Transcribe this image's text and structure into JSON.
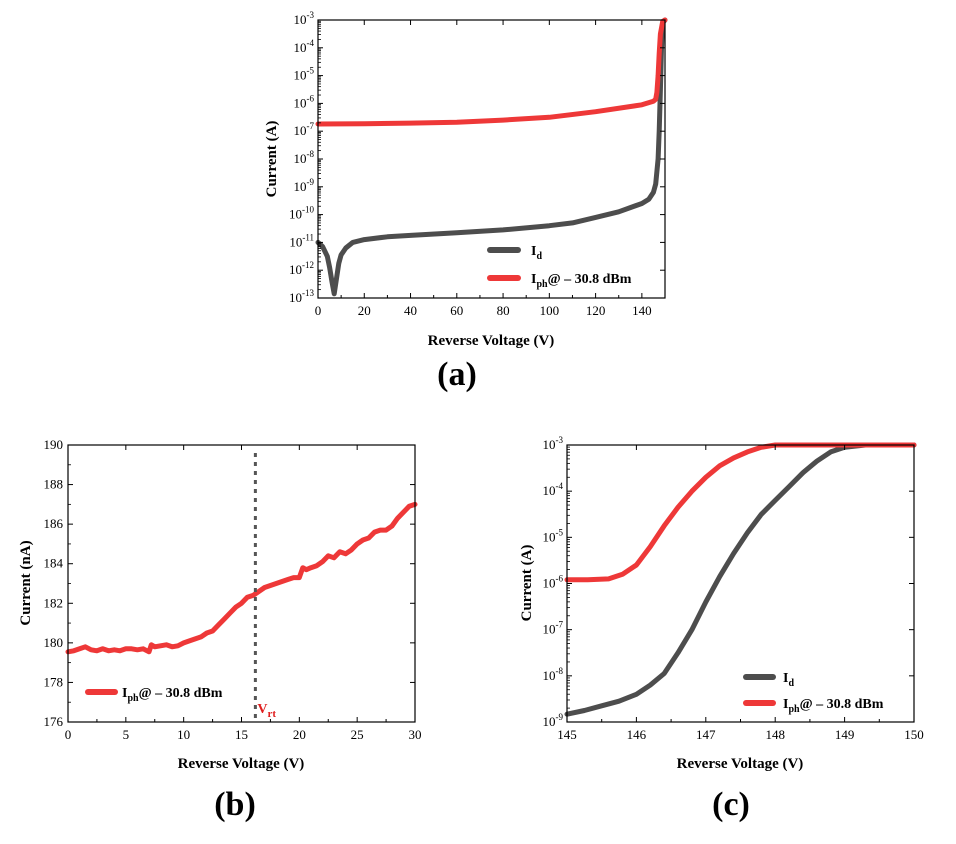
{
  "colors": {
    "dark": "#4d4d4d",
    "red": "#ee3838",
    "vrt": "#e01f1f"
  },
  "chart_data": [
    {
      "panel": "(a)",
      "type": "line",
      "xlabel": "Reverse Voltage (V)",
      "ylabel": "Current (A)",
      "xlim": [
        0,
        150
      ],
      "ylog_range": [
        -13,
        -3
      ],
      "yscale": "log",
      "xticks": [
        "0",
        "20",
        "40",
        "60",
        "80",
        "100",
        "120",
        "140"
      ],
      "xtick_values": [
        0,
        20,
        40,
        60,
        80,
        100,
        120,
        140
      ],
      "ytick_exponents": [
        "-13",
        "-12",
        "-11",
        "-10",
        "-9",
        "-8",
        "-7",
        "-6",
        "-5",
        "-4",
        "-3"
      ],
      "legend": [
        {
          "main": "I",
          "sub": "d",
          "rest": ""
        },
        {
          "main": "I",
          "sub": "ph",
          "rest": "@ – 30.8 dBm"
        }
      ],
      "series": [
        {
          "name": "Id",
          "color_key": "dark",
          "x": [
            0,
            2,
            4,
            5,
            6,
            7,
            8,
            9,
            10,
            12,
            15,
            20,
            30,
            40,
            60,
            80,
            100,
            110,
            120,
            130,
            135,
            140,
            143,
            145,
            146,
            147,
            147.5,
            148,
            148.5,
            149,
            150
          ],
          "log10y": [
            -11.0,
            -11.15,
            -11.5,
            -11.9,
            -12.4,
            -12.85,
            -12.3,
            -11.75,
            -11.45,
            -11.2,
            -11.0,
            -10.9,
            -10.8,
            -10.75,
            -10.65,
            -10.55,
            -10.4,
            -10.3,
            -10.1,
            -9.9,
            -9.75,
            -9.6,
            -9.45,
            -9.2,
            -8.9,
            -8.0,
            -7.0,
            -5.5,
            -4.0,
            -3.1,
            -3.0
          ]
        },
        {
          "name": "Iph@ – 30.8 dBm",
          "color_key": "red",
          "x": [
            0,
            20,
            40,
            60,
            80,
            100,
            120,
            140,
            145,
            146,
            146.5,
            147,
            147.5,
            148,
            149,
            150
          ],
          "log10y": [
            -6.74,
            -6.73,
            -6.71,
            -6.68,
            -6.6,
            -6.5,
            -6.3,
            -6.05,
            -5.92,
            -5.85,
            -5.6,
            -5.0,
            -4.2,
            -3.5,
            -3.05,
            -3.0
          ]
        }
      ],
      "label": "(a)"
    },
    {
      "panel": "(b)",
      "type": "line",
      "xlabel": "Reverse Voltage (V)",
      "ylabel": "Current (nA)",
      "xlim": [
        0,
        30
      ],
      "ylim": [
        176,
        190
      ],
      "xticks": [
        "0",
        "5",
        "10",
        "15",
        "20",
        "25",
        "30"
      ],
      "xtick_values": [
        0,
        5,
        10,
        15,
        20,
        25,
        30
      ],
      "yticks": [
        "176",
        "178",
        "180",
        "182",
        "184",
        "186",
        "188",
        "190"
      ],
      "ytick_values": [
        176,
        178,
        180,
        182,
        184,
        186,
        188,
        190
      ],
      "vline_x": 16.2,
      "vline_label_main": "V",
      "vline_label_sub": "rt",
      "legend": [
        {
          "main": "I",
          "sub": "ph",
          "rest": "@ – 30.8 dBm"
        }
      ],
      "series": [
        {
          "name": "Iph@ – 30.8 dBm",
          "color_key": "red",
          "x": [
            0,
            0.5,
            1,
            1.5,
            2,
            2.5,
            3,
            3.5,
            4,
            4.5,
            5,
            5.5,
            6,
            6.5,
            7,
            7.2,
            7.5,
            8,
            8.5,
            9,
            9.5,
            10,
            10.5,
            11,
            11.5,
            12,
            12.5,
            13,
            13.5,
            14,
            14.5,
            15,
            15.5,
            16,
            16.5,
            17,
            17.5,
            18,
            18.5,
            19,
            19.5,
            20,
            20.3,
            20.6,
            21,
            21.5,
            22,
            22.5,
            23,
            23.5,
            24,
            24.5,
            25,
            25.5,
            26,
            26.5,
            27,
            27.5,
            28,
            28.5,
            29,
            29.5,
            30
          ],
          "values": [
            179.55,
            179.6,
            179.7,
            179.8,
            179.65,
            179.6,
            179.7,
            179.6,
            179.65,
            179.6,
            179.7,
            179.7,
            179.65,
            179.7,
            179.55,
            179.9,
            179.8,
            179.85,
            179.9,
            179.8,
            179.85,
            180.0,
            180.1,
            180.2,
            180.3,
            180.5,
            180.6,
            180.9,
            181.2,
            181.5,
            181.8,
            182.0,
            182.3,
            182.4,
            182.6,
            182.8,
            182.9,
            183.0,
            183.1,
            183.2,
            183.3,
            183.3,
            183.8,
            183.7,
            183.8,
            183.9,
            184.1,
            184.4,
            184.3,
            184.6,
            184.5,
            184.7,
            185.0,
            185.2,
            185.3,
            185.6,
            185.7,
            185.7,
            185.9,
            186.3,
            186.6,
            186.9,
            187.0
          ]
        }
      ],
      "label": "(b)"
    },
    {
      "panel": "(c)",
      "type": "line",
      "xlabel": "Reverse Voltage (V)",
      "ylabel": "Current (A)",
      "xlim": [
        145,
        150
      ],
      "ylog_range": [
        -9,
        -3
      ],
      "yscale": "log",
      "xticks": [
        "145",
        "146",
        "147",
        "148",
        "149",
        "150"
      ],
      "xtick_values": [
        145,
        146,
        147,
        148,
        149,
        150
      ],
      "ytick_exponents": [
        "-9",
        "-8",
        "-7",
        "-6",
        "-5",
        "-4",
        "-3"
      ],
      "legend": [
        {
          "main": "I",
          "sub": "d",
          "rest": ""
        },
        {
          "main": "I",
          "sub": "ph",
          "rest": "@ – 30.8 dBm"
        }
      ],
      "series": [
        {
          "name": "Id",
          "color_key": "dark",
          "x": [
            145,
            145.25,
            145.5,
            145.75,
            146,
            146.2,
            146.4,
            146.6,
            146.8,
            147,
            147.2,
            147.4,
            147.6,
            147.8,
            148,
            148.2,
            148.4,
            148.6,
            148.8,
            149,
            149.3,
            150
          ],
          "log10y": [
            -8.83,
            -8.75,
            -8.65,
            -8.55,
            -8.4,
            -8.2,
            -7.95,
            -7.5,
            -7.0,
            -6.4,
            -5.85,
            -5.35,
            -4.9,
            -4.5,
            -4.2,
            -3.9,
            -3.6,
            -3.35,
            -3.15,
            -3.05,
            -3.0,
            -3.0
          ]
        },
        {
          "name": "Iph@ – 30.8 dBm",
          "color_key": "red",
          "x": [
            145,
            145.3,
            145.6,
            145.8,
            146,
            146.2,
            146.4,
            146.6,
            146.8,
            147,
            147.2,
            147.4,
            147.6,
            147.8,
            148,
            148.5,
            150
          ],
          "log10y": [
            -5.92,
            -5.92,
            -5.9,
            -5.8,
            -5.6,
            -5.2,
            -4.75,
            -4.35,
            -4.0,
            -3.7,
            -3.45,
            -3.28,
            -3.15,
            -3.05,
            -3.0,
            -3.0,
            -3.0
          ]
        }
      ],
      "label": "(c)"
    }
  ]
}
